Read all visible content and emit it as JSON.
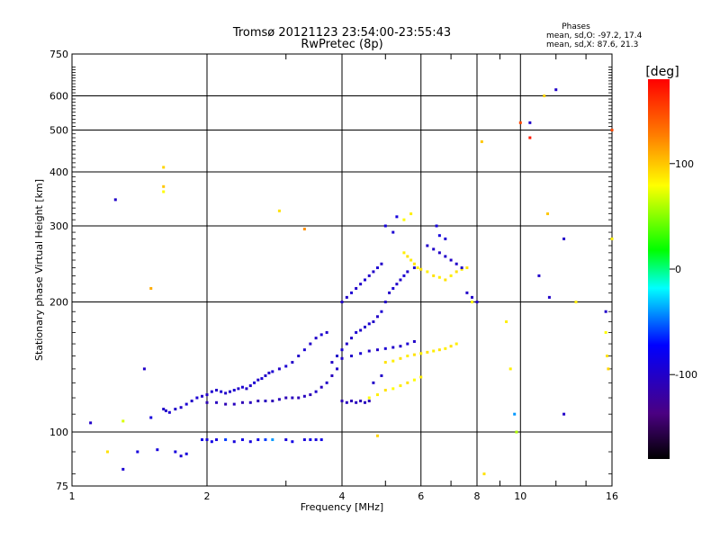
{
  "chart_data": {
    "type": "scatter",
    "title": "Tromsø 20121123 23:54:00-23:55:43",
    "subtitle": "RwPretec (8p)",
    "xlabel": "Frequency [MHz]",
    "ylabel": "Stationary phase Virtual Height [km]",
    "xscale": "log",
    "yscale": "log",
    "xlim": [
      1,
      16
    ],
    "ylim": [
      75,
      750
    ],
    "x_ticks": [
      1,
      2,
      4,
      6,
      8,
      10,
      16
    ],
    "y_ticks": [
      75,
      100,
      200,
      300,
      400,
      500,
      600,
      750
    ],
    "grid": true,
    "stats": {
      "heading": "Phases",
      "o_line": "mean, sd,O: -97.2, 17.4",
      "x_line": "mean, sd,X:  87.6, 21.3"
    },
    "colorbar": {
      "label": "[deg]",
      "range": [
        -180,
        180
      ],
      "ticks": [
        100,
        0,
        -100
      ],
      "colormap": [
        "#000000",
        "#4b0082",
        "#0000ff",
        "#00ffff",
        "#00ff00",
        "#ffff00",
        "#ff8000",
        "#ff0000"
      ]
    },
    "points": [
      [
        1.6,
        113,
        -100
      ],
      [
        1.62,
        112,
        -100
      ],
      [
        1.65,
        111,
        -95
      ],
      [
        1.7,
        113,
        -100
      ],
      [
        1.75,
        114,
        -100
      ],
      [
        1.8,
        116,
        -95
      ],
      [
        1.85,
        118,
        -100
      ],
      [
        1.9,
        120,
        -95
      ],
      [
        1.95,
        121,
        -100
      ],
      [
        2.0,
        122,
        -100
      ],
      [
        2.05,
        124,
        -95
      ],
      [
        2.1,
        125,
        -100
      ],
      [
        2.15,
        124,
        -95
      ],
      [
        2.2,
        123,
        -100
      ],
      [
        2.25,
        124,
        -100
      ],
      [
        2.3,
        125,
        -95
      ],
      [
        2.35,
        126,
        -100
      ],
      [
        2.4,
        127,
        -95
      ],
      [
        2.45,
        126,
        -100
      ],
      [
        2.5,
        128,
        -100
      ],
      [
        2.55,
        130,
        -95
      ],
      [
        2.6,
        132,
        -100
      ],
      [
        2.65,
        133,
        -95
      ],
      [
        2.7,
        135,
        -100
      ],
      [
        2.75,
        137,
        -100
      ],
      [
        2.8,
        138,
        -95
      ],
      [
        2.9,
        140,
        -100
      ],
      [
        3.0,
        142,
        -95
      ],
      [
        3.1,
        145,
        -100
      ],
      [
        3.2,
        150,
        -100
      ],
      [
        3.3,
        155,
        -95
      ],
      [
        3.4,
        160,
        -100
      ],
      [
        3.5,
        165,
        -100
      ],
      [
        3.6,
        168,
        -95
      ],
      [
        3.7,
        170,
        -100
      ],
      [
        2.0,
        117,
        -110
      ],
      [
        2.1,
        117,
        -105
      ],
      [
        2.2,
        116,
        -110
      ],
      [
        2.3,
        116,
        -105
      ],
      [
        2.4,
        117,
        -110
      ],
      [
        2.5,
        117,
        -105
      ],
      [
        2.6,
        118,
        -110
      ],
      [
        2.7,
        118,
        -105
      ],
      [
        2.8,
        118,
        -110
      ],
      [
        2.9,
        119,
        -105
      ],
      [
        3.0,
        120,
        -110
      ],
      [
        3.1,
        120,
        -105
      ],
      [
        3.2,
        120,
        -110
      ],
      [
        3.3,
        121,
        -105
      ],
      [
        3.4,
        122,
        -110
      ],
      [
        3.5,
        124,
        -100
      ],
      [
        3.6,
        127,
        -105
      ],
      [
        3.7,
        130,
        -100
      ],
      [
        3.8,
        135,
        -105
      ],
      [
        3.9,
        140,
        -100
      ],
      [
        1.95,
        96,
        -85
      ],
      [
        2.0,
        96,
        -90
      ],
      [
        2.05,
        95,
        -85
      ],
      [
        2.1,
        96,
        -90
      ],
      [
        2.2,
        96,
        -60
      ],
      [
        2.3,
        95,
        -90
      ],
      [
        2.4,
        96,
        -85
      ],
      [
        2.5,
        95,
        -90
      ],
      [
        2.6,
        96,
        -85
      ],
      [
        2.7,
        96,
        -60
      ],
      [
        2.8,
        96,
        -40
      ],
      [
        3.0,
        96,
        -90
      ],
      [
        3.1,
        95,
        -85
      ],
      [
        3.3,
        96,
        -90
      ],
      [
        3.4,
        96,
        -85
      ],
      [
        3.5,
        96,
        -90
      ],
      [
        3.6,
        96,
        -85
      ],
      [
        1.7,
        90,
        -90
      ],
      [
        1.75,
        88,
        -95
      ],
      [
        1.8,
        89,
        -90
      ],
      [
        3.8,
        145,
        -100
      ],
      [
        3.9,
        150,
        -100
      ],
      [
        4.0,
        155,
        -95
      ],
      [
        4.1,
        160,
        -100
      ],
      [
        4.2,
        165,
        -100
      ],
      [
        4.3,
        170,
        -95
      ],
      [
        4.4,
        172,
        -100
      ],
      [
        4.5,
        175,
        -100
      ],
      [
        4.6,
        178,
        -95
      ],
      [
        4.7,
        180,
        -100
      ],
      [
        4.8,
        185,
        -100
      ],
      [
        4.9,
        190,
        -95
      ],
      [
        5.0,
        200,
        -100
      ],
      [
        5.1,
        210,
        -100
      ],
      [
        5.2,
        215,
        -95
      ],
      [
        5.3,
        220,
        -100
      ],
      [
        5.4,
        225,
        -100
      ],
      [
        5.5,
        230,
        -95
      ],
      [
        5.6,
        235,
        -100
      ],
      [
        5.8,
        240,
        -100
      ],
      [
        4.0,
        200,
        -100
      ],
      [
        4.1,
        205,
        -100
      ],
      [
        4.2,
        210,
        -95
      ],
      [
        4.3,
        215,
        -100
      ],
      [
        4.4,
        220,
        -100
      ],
      [
        4.5,
        225,
        -95
      ],
      [
        4.6,
        230,
        -100
      ],
      [
        4.7,
        235,
        -100
      ],
      [
        4.8,
        240,
        -95
      ],
      [
        4.9,
        245,
        -100
      ],
      [
        4.0,
        148,
        -100
      ],
      [
        4.2,
        150,
        -100
      ],
      [
        4.4,
        152,
        -95
      ],
      [
        4.6,
        154,
        -100
      ],
      [
        4.8,
        155,
        -100
      ],
      [
        5.0,
        156,
        -95
      ],
      [
        5.2,
        157,
        -100
      ],
      [
        5.4,
        158,
        -100
      ],
      [
        5.6,
        160,
        -95
      ],
      [
        5.8,
        162,
        -100
      ],
      [
        4.0,
        118,
        -110
      ],
      [
        4.1,
        117,
        -105
      ],
      [
        4.2,
        118,
        -110
      ],
      [
        4.3,
        117,
        -105
      ],
      [
        4.4,
        118,
        -110
      ],
      [
        4.5,
        117,
        -105
      ],
      [
        4.6,
        118,
        -110
      ],
      [
        4.7,
        130,
        -100
      ],
      [
        4.9,
        135,
        -100
      ],
      [
        4.6,
        120,
        80
      ],
      [
        4.8,
        122,
        85
      ],
      [
        5.0,
        125,
        90
      ],
      [
        5.2,
        126,
        80
      ],
      [
        5.4,
        128,
        85
      ],
      [
        5.6,
        130,
        90
      ],
      [
        5.8,
        132,
        80
      ],
      [
        6.0,
        134,
        85
      ],
      [
        5.0,
        145,
        90
      ],
      [
        5.2,
        146,
        85
      ],
      [
        5.4,
        148,
        90
      ],
      [
        5.6,
        150,
        85
      ],
      [
        5.8,
        151,
        90
      ],
      [
        6.0,
        152,
        85
      ],
      [
        6.2,
        153,
        90
      ],
      [
        6.4,
        154,
        85
      ],
      [
        6.6,
        155,
        90
      ],
      [
        6.8,
        156,
        85
      ],
      [
        7.0,
        158,
        90
      ],
      [
        7.2,
        160,
        85
      ],
      [
        5.5,
        260,
        85
      ],
      [
        5.6,
        255,
        90
      ],
      [
        5.7,
        250,
        85
      ],
      [
        5.8,
        245,
        90
      ],
      [
        5.9,
        240,
        85
      ],
      [
        6.0,
        238,
        90
      ],
      [
        6.2,
        235,
        85
      ],
      [
        6.4,
        230,
        90
      ],
      [
        6.6,
        228,
        85
      ],
      [
        6.8,
        225,
        90
      ],
      [
        7.0,
        230,
        85
      ],
      [
        7.2,
        235,
        90
      ],
      [
        7.4,
        238,
        85
      ],
      [
        7.6,
        240,
        90
      ],
      [
        7.8,
        200,
        85
      ],
      [
        6.2,
        270,
        -100
      ],
      [
        6.4,
        265,
        -100
      ],
      [
        6.6,
        260,
        -100
      ],
      [
        6.8,
        255,
        -100
      ],
      [
        7.0,
        250,
        -100
      ],
      [
        7.2,
        245,
        -100
      ],
      [
        7.4,
        240,
        -100
      ],
      [
        7.6,
        210,
        -100
      ],
      [
        7.8,
        205,
        -100
      ],
      [
        8.0,
        200,
        -100
      ],
      [
        6.6,
        285,
        -90
      ],
      [
        6.8,
        280,
        -95
      ],
      [
        6.5,
        300,
        -90
      ],
      [
        5.7,
        320,
        85
      ],
      [
        5.3,
        315,
        -90
      ],
      [
        5.5,
        310,
        80
      ],
      [
        5.0,
        300,
        -90
      ],
      [
        5.2,
        290,
        -95
      ],
      [
        1.1,
        105,
        -100
      ],
      [
        1.3,
        106,
        70
      ],
      [
        1.4,
        90,
        -90
      ],
      [
        1.5,
        108,
        -90
      ],
      [
        1.45,
        140,
        -100
      ],
      [
        1.55,
        91,
        -90
      ],
      [
        1.3,
        82,
        -95
      ],
      [
        1.2,
        90,
        90
      ],
      [
        1.25,
        345,
        -100
      ],
      [
        1.6,
        410,
        95
      ],
      [
        1.6,
        370,
        100
      ],
      [
        1.6,
        360,
        80
      ],
      [
        1.5,
        215,
        110
      ],
      [
        2.9,
        325,
        90
      ],
      [
        3.3,
        295,
        120
      ],
      [
        4.8,
        98,
        95
      ],
      [
        9.3,
        180,
        85
      ],
      [
        10.0,
        520,
        150
      ],
      [
        10.5,
        520,
        -100
      ],
      [
        10.5,
        480,
        170
      ],
      [
        11.0,
        230,
        -100
      ],
      [
        11.3,
        600,
        95
      ],
      [
        11.5,
        320,
        100
      ],
      [
        12.0,
        620,
        -100
      ],
      [
        12.5,
        280,
        -100
      ],
      [
        12.5,
        110,
        -100
      ],
      [
        11.6,
        205,
        -100
      ],
      [
        13.3,
        200,
        85
      ],
      [
        15.5,
        190,
        -100
      ],
      [
        15.5,
        170,
        80
      ],
      [
        15.6,
        150,
        90
      ],
      [
        15.7,
        140,
        95
      ],
      [
        16.0,
        280,
        85
      ],
      [
        16.0,
        500,
        150
      ],
      [
        9.5,
        140,
        85
      ],
      [
        9.8,
        100,
        60
      ],
      [
        9.7,
        110,
        -40
      ],
      [
        8.2,
        470,
        100
      ],
      [
        8.3,
        80,
        90
      ]
    ]
  }
}
